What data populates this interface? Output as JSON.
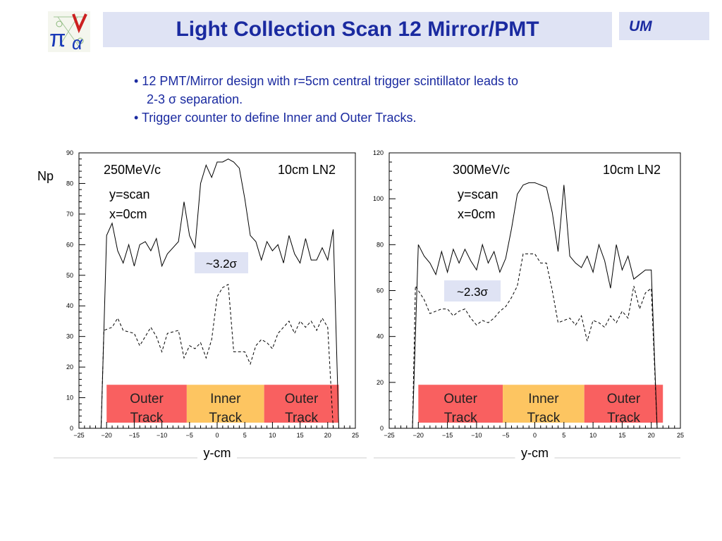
{
  "title": "Light Collection Scan 12 Mirror/PMT",
  "badge": "UM",
  "bullets": {
    "b1_line1": "• 12 PMT/Mirror design with r=5cm central trigger scintillator leads to",
    "b1_line2": "2-3 σ  separation.",
    "b2": "• Trigger counter to define Inner and Outer Tracks."
  },
  "colors": {
    "title": "#1a2aa0",
    "box": "#dfe3f4",
    "outer": "#f96060",
    "inner": "#fdc561"
  },
  "chart_data": [
    {
      "type": "line",
      "ylabel": "Np",
      "xlabel": "y-cm",
      "momentum": "250MeV/c",
      "target": "10cm LN2",
      "scan_line1": "y=scan",
      "scan_line2": "x=0cm",
      "separation": "~3.2σ",
      "xlim": [
        -25,
        25
      ],
      "ylim": [
        0,
        90
      ],
      "xticks": [
        -25,
        -20,
        -15,
        -10,
        -5,
        0,
        5,
        10,
        15,
        20,
        25
      ],
      "yticks": [
        0,
        10,
        20,
        30,
        40,
        50,
        60,
        70,
        80,
        90
      ],
      "regions": [
        {
          "label1": "Outer",
          "label2": "Track",
          "x0": -20,
          "x1": -5.5,
          "kind": "outer"
        },
        {
          "label1": "Inner",
          "label2": "Track",
          "x0": -5.5,
          "x1": 8.5,
          "kind": "inner"
        },
        {
          "label1": "Outer",
          "label2": "Track",
          "x0": 8.5,
          "x1": 22,
          "kind": "outer"
        }
      ],
      "series": [
        {
          "style": "solid",
          "points": [
            [
              -22,
              0
            ],
            [
              -21,
              0
            ],
            [
              -20,
              63
            ],
            [
              -19,
              67
            ],
            [
              -18,
              58
            ],
            [
              -17,
              54
            ],
            [
              -16,
              60
            ],
            [
              -15,
              53
            ],
            [
              -14,
              60
            ],
            [
              -13,
              61
            ],
            [
              -12,
              58
            ],
            [
              -11,
              62
            ],
            [
              -10,
              53
            ],
            [
              -9,
              57
            ],
            [
              -8,
              59
            ],
            [
              -7,
              61
            ],
            [
              -6,
              74
            ],
            [
              -5,
              63
            ],
            [
              -4,
              59
            ],
            [
              -3,
              80
            ],
            [
              -2,
              86
            ],
            [
              -1,
              82
            ],
            [
              0,
              87
            ],
            [
              1,
              87
            ],
            [
              2,
              88
            ],
            [
              3,
              87
            ],
            [
              4,
              85
            ],
            [
              5,
              75
            ],
            [
              6,
              63
            ],
            [
              7,
              61
            ],
            [
              8,
              55
            ],
            [
              9,
              61
            ],
            [
              10,
              58
            ],
            [
              11,
              60
            ],
            [
              12,
              54
            ],
            [
              13,
              63
            ],
            [
              14,
              57
            ],
            [
              15,
              54
            ],
            [
              16,
              62
            ],
            [
              17,
              55
            ],
            [
              18,
              55
            ],
            [
              19,
              59
            ],
            [
              20,
              55
            ],
            [
              21,
              65
            ],
            [
              22,
              0
            ]
          ]
        },
        {
          "style": "dashed",
          "points": [
            [
              -21,
              0
            ],
            [
              -20.5,
              32
            ],
            [
              -19,
              33
            ],
            [
              -18,
              36
            ],
            [
              -17,
              32
            ],
            [
              -15,
              31
            ],
            [
              -14,
              27
            ],
            [
              -13,
              30
            ],
            [
              -12,
              33
            ],
            [
              -11,
              30
            ],
            [
              -10,
              25
            ],
            [
              -9,
              31
            ],
            [
              -7,
              32
            ],
            [
              -6,
              23
            ],
            [
              -5,
              27
            ],
            [
              -4,
              26
            ],
            [
              -3,
              28
            ],
            [
              -2,
              23
            ],
            [
              -1,
              29
            ],
            [
              0,
              43
            ],
            [
              1,
              46
            ],
            [
              2,
              47
            ],
            [
              3,
              25
            ],
            [
              4,
              25
            ],
            [
              5,
              25
            ],
            [
              6,
              21
            ],
            [
              7,
              27
            ],
            [
              8,
              29
            ],
            [
              9,
              28
            ],
            [
              10,
              26
            ],
            [
              11,
              31
            ],
            [
              12,
              33
            ],
            [
              13,
              35
            ],
            [
              14,
              31
            ],
            [
              15,
              35
            ],
            [
              16,
              33
            ],
            [
              17,
              35
            ],
            [
              18,
              32
            ],
            [
              19,
              36
            ],
            [
              20,
              33
            ],
            [
              21,
              0
            ]
          ]
        }
      ]
    },
    {
      "type": "line",
      "xlabel": "y-cm",
      "momentum": "300MeV/c",
      "target": "10cm LN2",
      "scan_line1": "y=scan",
      "scan_line2": "x=0cm",
      "separation": "~2.3σ",
      "xlim": [
        -25,
        25
      ],
      "ylim": [
        0,
        120
      ],
      "xticks": [
        -25,
        -20,
        -15,
        -10,
        -5,
        0,
        5,
        10,
        15,
        20,
        25
      ],
      "yticks": [
        0,
        20,
        40,
        60,
        80,
        100,
        120
      ],
      "regions": [
        {
          "label1": "Outer",
          "label2": "Track",
          "x0": -20,
          "x1": -5.5,
          "kind": "outer"
        },
        {
          "label1": "Inner",
          "label2": "Track",
          "x0": -5.5,
          "x1": 8.5,
          "kind": "inner"
        },
        {
          "label1": "Outer",
          "label2": "Track",
          "x0": 8.5,
          "x1": 22,
          "kind": "outer"
        }
      ],
      "series": [
        {
          "style": "solid",
          "points": [
            [
              -21,
              0
            ],
            [
              -20,
              80
            ],
            [
              -19,
              75
            ],
            [
              -18,
              72
            ],
            [
              -17,
              67
            ],
            [
              -16,
              77
            ],
            [
              -15,
              68
            ],
            [
              -14,
              78
            ],
            [
              -13,
              72
            ],
            [
              -12,
              78
            ],
            [
              -11,
              73
            ],
            [
              -10,
              69
            ],
            [
              -9,
              80
            ],
            [
              -8,
              72
            ],
            [
              -7,
              77
            ],
            [
              -6,
              68
            ],
            [
              -5,
              74
            ],
            [
              -4,
              87
            ],
            [
              -3,
              102
            ],
            [
              -2,
              106
            ],
            [
              -1,
              107
            ],
            [
              0,
              107
            ],
            [
              1,
              106
            ],
            [
              2,
              105
            ],
            [
              3,
              94
            ],
            [
              4,
              77
            ],
            [
              5,
              106
            ],
            [
              6,
              75
            ],
            [
              7,
              72
            ],
            [
              8,
              70
            ],
            [
              9,
              75
            ],
            [
              10,
              68
            ],
            [
              11,
              80
            ],
            [
              12,
              73
            ],
            [
              13,
              61
            ],
            [
              14,
              80
            ],
            [
              15,
              69
            ],
            [
              16,
              75
            ],
            [
              17,
              65
            ],
            [
              18,
              67
            ],
            [
              19,
              69
            ],
            [
              20,
              69
            ],
            [
              21,
              0
            ]
          ]
        },
        {
          "style": "dashed",
          "points": [
            [
              -21,
              0
            ],
            [
              -20.5,
              62
            ],
            [
              -19,
              56
            ],
            [
              -18,
              50
            ],
            [
              -17,
              51
            ],
            [
              -16,
              52
            ],
            [
              -15,
              52
            ],
            [
              -14,
              49
            ],
            [
              -13,
              51
            ],
            [
              -12,
              52
            ],
            [
              -11,
              48
            ],
            [
              -10,
              45
            ],
            [
              -9,
              47
            ],
            [
              -8,
              46
            ],
            [
              -7,
              48
            ],
            [
              -6,
              51
            ],
            [
              -5,
              53
            ],
            [
              -4,
              57
            ],
            [
              -3,
              62
            ],
            [
              -2,
              76
            ],
            [
              -1,
              76
            ],
            [
              0,
              76
            ],
            [
              1,
              72
            ],
            [
              2,
              72
            ],
            [
              3,
              60
            ],
            [
              4,
              46
            ],
            [
              5,
              47
            ],
            [
              6,
              48
            ],
            [
              7,
              45
            ],
            [
              8,
              49
            ],
            [
              9,
              38
            ],
            [
              10,
              47
            ],
            [
              11,
              46
            ],
            [
              12,
              44
            ],
            [
              13,
              49
            ],
            [
              14,
              46
            ],
            [
              15,
              51
            ],
            [
              16,
              48
            ],
            [
              17,
              62
            ],
            [
              18,
              52
            ],
            [
              19,
              59
            ],
            [
              20,
              61
            ],
            [
              21,
              0
            ]
          ]
        }
      ]
    }
  ]
}
